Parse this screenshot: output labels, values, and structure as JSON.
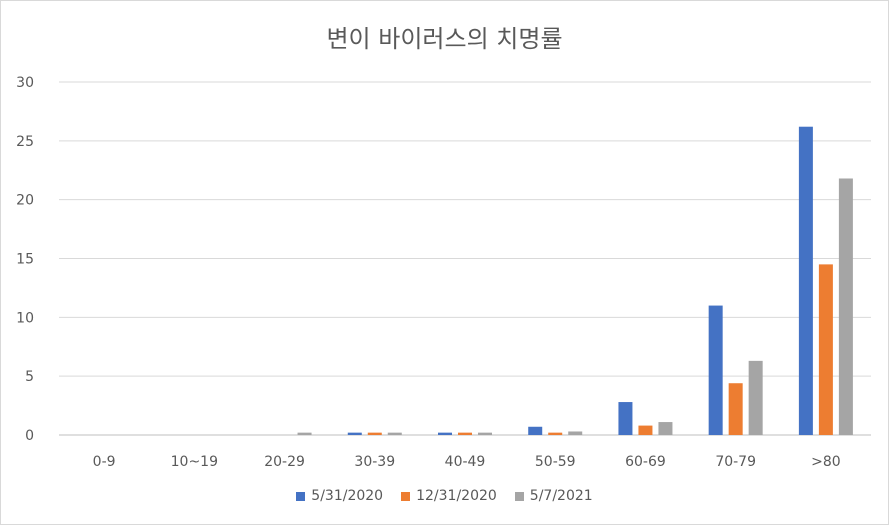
{
  "chart_data": {
    "type": "bar",
    "title": "변이 바이러스의 치명률",
    "categories": [
      "0-9",
      "10~19",
      "20-29",
      "30-39",
      "40-49",
      "50-59",
      "60-69",
      "70-79",
      ">80"
    ],
    "ylim": [
      0,
      30
    ],
    "yticks": [
      0,
      5,
      10,
      15,
      20,
      25,
      30
    ],
    "grid": true,
    "legend_position": "bottom",
    "series": [
      {
        "name": "5/31/2020",
        "color": "#4472C4",
        "values": [
          0,
          0,
          0,
          0.2,
          0.2,
          0.7,
          2.8,
          11.0,
          26.2
        ]
      },
      {
        "name": "12/31/2020",
        "color": "#ED7D31",
        "values": [
          0,
          0,
          0,
          0.2,
          0.2,
          0.2,
          0.8,
          4.4,
          14.5
        ]
      },
      {
        "name": "5/7/2021",
        "color": "#A5A5A5",
        "values": [
          0,
          0,
          0.2,
          0.2,
          0.2,
          0.3,
          1.1,
          6.3,
          21.8
        ]
      }
    ]
  }
}
